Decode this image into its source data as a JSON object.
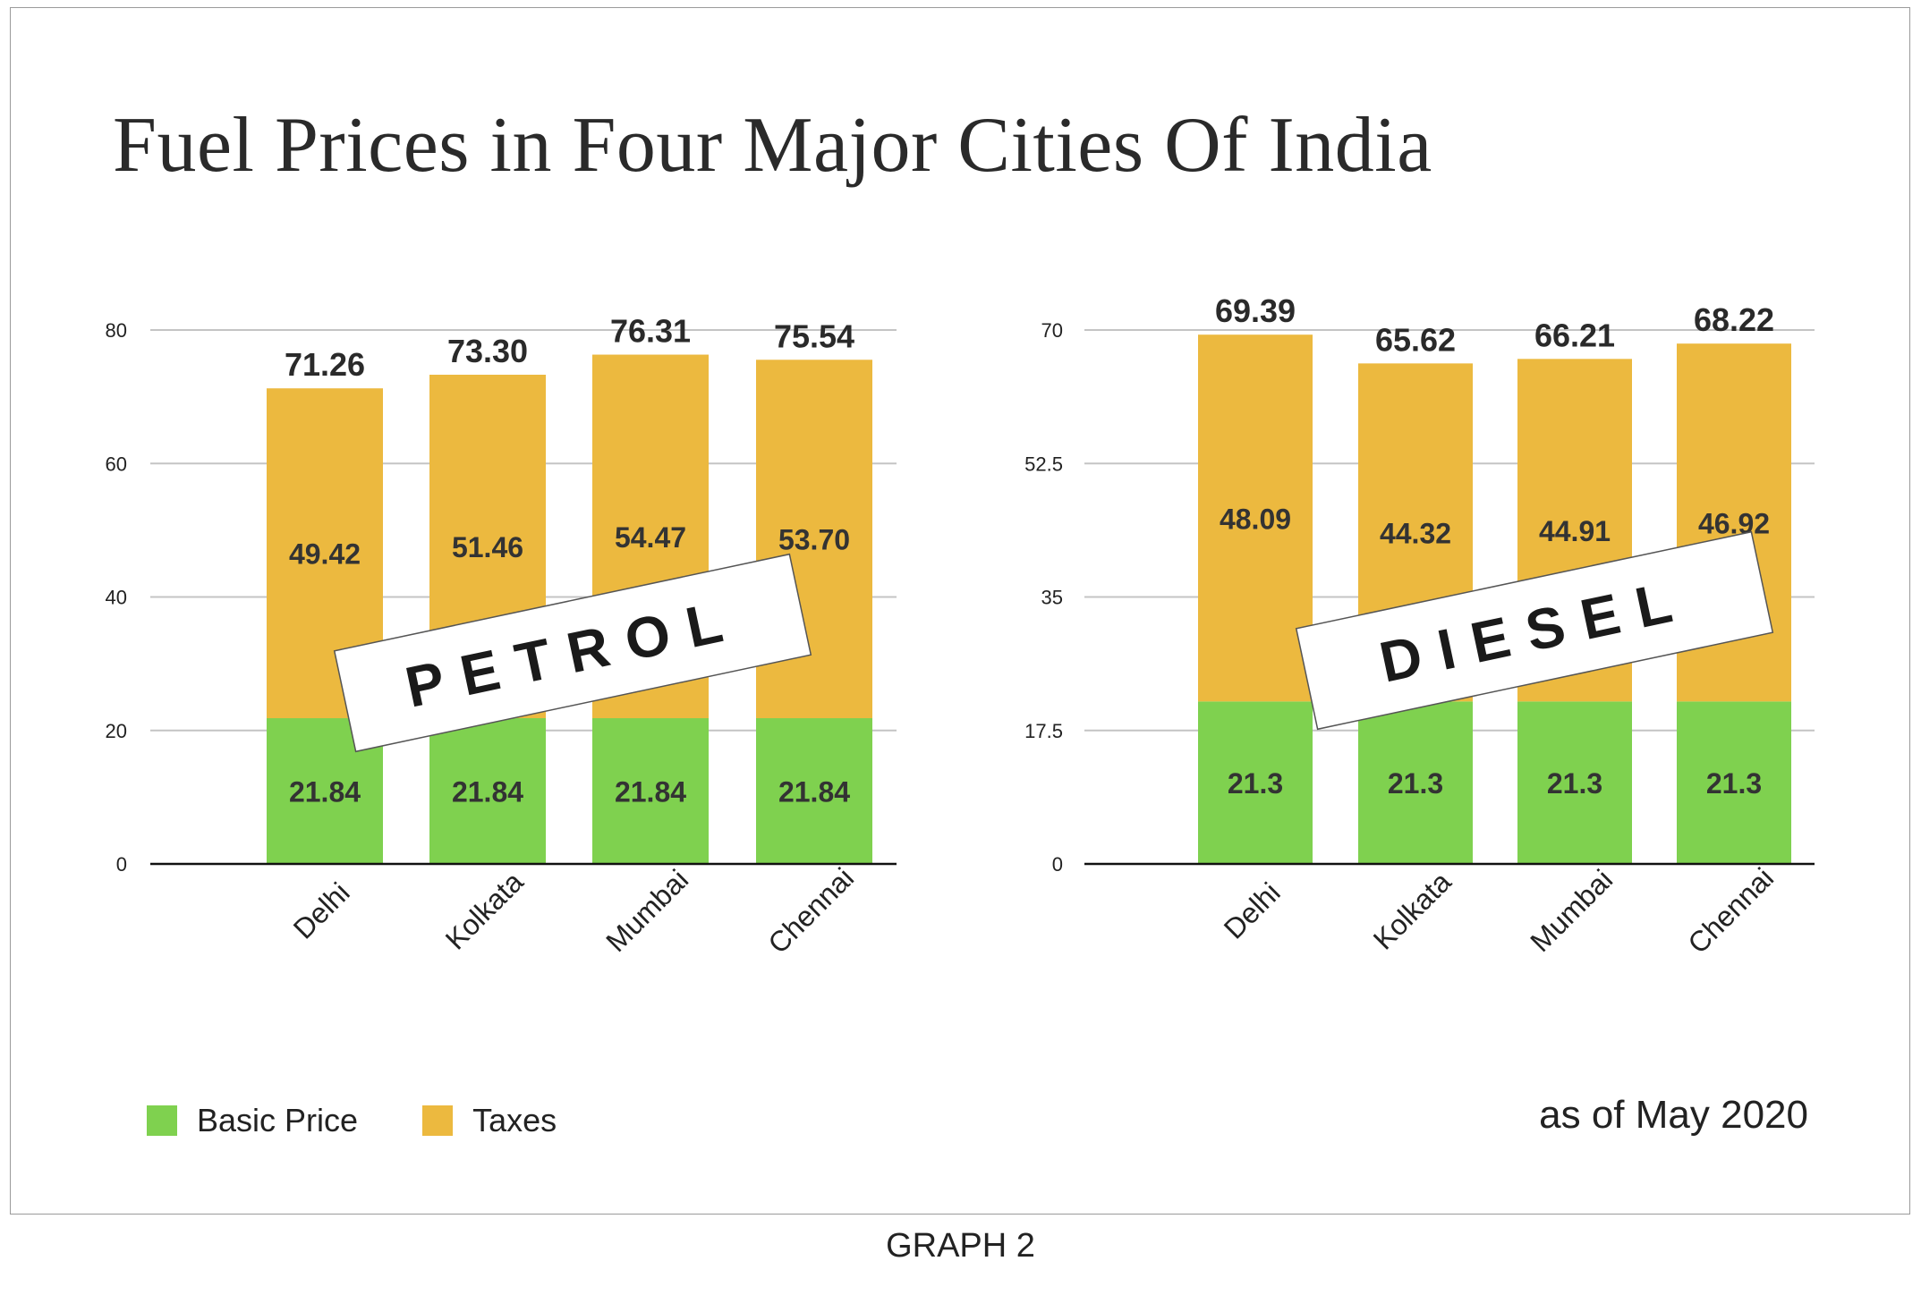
{
  "title": "Fuel Prices in Four Major Cities Of India",
  "legend": [
    {
      "label": "Basic Price",
      "color": "#7fd14f"
    },
    {
      "label": "Taxes",
      "color": "#ecb93f"
    }
  ],
  "note": "as of May 2020",
  "caption": "GRAPH 2",
  "chart_data": [
    {
      "type": "bar",
      "stacked": true,
      "stamp": "PETROL",
      "categories": [
        "Delhi",
        "Kolkata",
        "Mumbai",
        "Chennai"
      ],
      "series": [
        {
          "name": "Basic Price",
          "values": [
            21.84,
            21.84,
            21.84,
            21.84
          ],
          "labels": [
            "21.84",
            "21.84",
            "21.84",
            "21.84"
          ],
          "color": "#7fd14f"
        },
        {
          "name": "Taxes",
          "values": [
            49.42,
            51.46,
            54.47,
            53.7
          ],
          "labels": [
            "49.42",
            "51.46",
            "54.47",
            "53.70"
          ],
          "color": "#ecb93f"
        }
      ],
      "totals": [
        "71.26",
        "73.30",
        "76.31",
        "75.54"
      ],
      "ylim": [
        0,
        80
      ],
      "yticks": [
        "0",
        "20",
        "40",
        "60",
        "80"
      ],
      "grid": true
    },
    {
      "type": "bar",
      "stacked": true,
      "stamp": "DIESEL",
      "categories": [
        "Delhi",
        "Kolkata",
        "Mumbai",
        "Chennai"
      ],
      "series": [
        {
          "name": "Basic Price",
          "values": [
            21.3,
            21.3,
            21.3,
            21.3
          ],
          "labels": [
            "21.3",
            "21.3",
            "21.3",
            "21.3"
          ],
          "color": "#7fd14f"
        },
        {
          "name": "Taxes",
          "values": [
            48.09,
            44.32,
            44.91,
            46.92
          ],
          "labels": [
            "48.09",
            "44.32",
            "44.91",
            "46.92"
          ],
          "color": "#ecb93f"
        }
      ],
      "totals": [
        "69.39",
        "65.62",
        "66.21",
        "68.22"
      ],
      "ylim": [
        0,
        70
      ],
      "yticks": [
        "0",
        "17.5",
        "35",
        "52.5",
        "70"
      ],
      "grid": true
    }
  ]
}
